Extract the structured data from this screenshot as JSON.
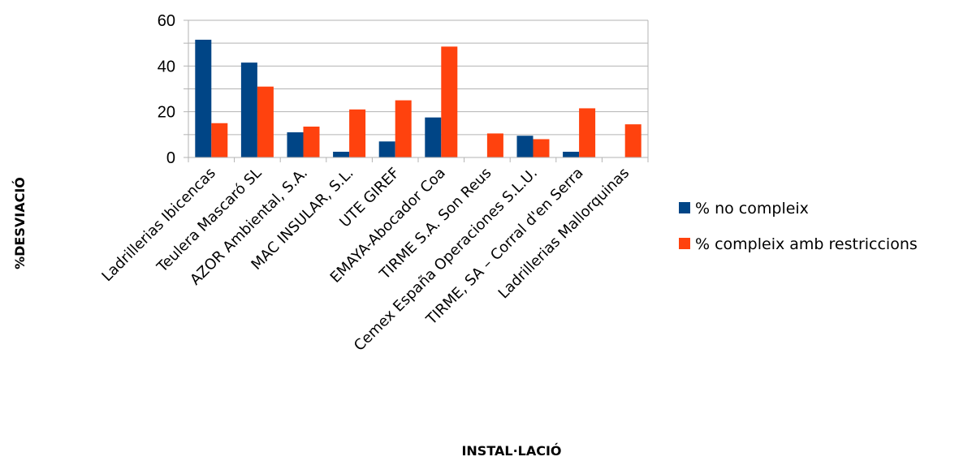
{
  "chart_data": {
    "type": "bar",
    "title": "",
    "xlabel": "INSTAL·LACIÓ",
    "ylabel": "%DESVIACIÓ",
    "ylim": [
      0,
      60
    ],
    "yticks": [
      0,
      20,
      40,
      60
    ],
    "grid": true,
    "legend_position": "right",
    "categories": [
      "Ladrillerias Ibicencas",
      "Teulera Mascaró SL",
      "AZOR Ambiental, S.A.",
      "MAC INSULAR, S.L.",
      "UTE GIREF",
      "EMAYA-Abocador Coa",
      "TIRME S.A. Son Reus",
      "Cemex España Operaciones S.L.U.",
      "TIRME, SA – Corral d'en Serra",
      "Ladrillerias Mallorquinas"
    ],
    "series": [
      {
        "name": "% no compleix",
        "color": "#004586",
        "values": [
          51.5,
          41.5,
          11,
          2.5,
          7,
          17.5,
          0,
          9.5,
          2.5,
          0
        ]
      },
      {
        "name": "% compleix amb restriccions",
        "color": "#ff420e",
        "values": [
          15,
          31,
          13.5,
          21,
          25,
          48.5,
          10.5,
          8,
          21.5,
          14.5
        ]
      }
    ]
  }
}
